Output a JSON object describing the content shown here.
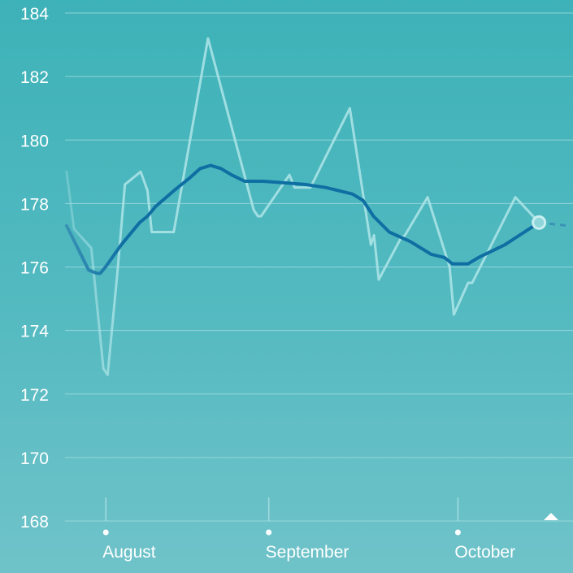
{
  "chart_data": {
    "type": "line",
    "title": "",
    "xlabel": "",
    "ylabel": "",
    "ylim": [
      168,
      184
    ],
    "ytick_labels": [
      "168",
      "170",
      "172",
      "174",
      "176",
      "178",
      "180",
      "182",
      "184"
    ],
    "x_month_labels": [
      "August",
      "September",
      "October"
    ],
    "grid": true,
    "series": [
      {
        "role": "raw",
        "values": [
          [
            -1.4,
            179.0
          ],
          [
            0.0,
            177.2
          ],
          [
            3.3,
            176.6
          ],
          [
            5.6,
            172.8
          ],
          [
            6.4,
            172.6
          ],
          [
            8.3,
            175.9
          ],
          [
            9.7,
            178.6
          ],
          [
            12.7,
            179.0
          ],
          [
            14.0,
            178.4
          ],
          [
            14.8,
            177.1
          ],
          [
            19.0,
            177.1
          ],
          [
            25.5,
            183.2
          ],
          [
            34.2,
            177.8
          ],
          [
            35.0,
            177.6
          ],
          [
            35.6,
            177.6
          ],
          [
            41.0,
            178.9
          ],
          [
            42.0,
            178.5
          ],
          [
            45.0,
            178.5
          ],
          [
            52.5,
            181.0
          ],
          [
            56.5,
            176.7
          ],
          [
            57.1,
            177.0
          ],
          [
            58.0,
            175.6
          ],
          [
            62.2,
            176.9
          ],
          [
            63.0,
            177.0
          ],
          [
            67.3,
            178.2
          ],
          [
            71.5,
            176.0
          ],
          [
            72.3,
            174.5
          ],
          [
            75.0,
            175.5
          ],
          [
            75.8,
            175.5
          ],
          [
            84.0,
            178.2
          ],
          [
            88.5,
            177.4
          ]
        ]
      },
      {
        "role": "trend",
        "values": [
          [
            -1.4,
            177.3
          ],
          [
            2.8,
            175.9
          ],
          [
            4.4,
            175.8
          ],
          [
            5.0,
            175.8
          ],
          [
            6.0,
            176.0
          ],
          [
            9.0,
            176.7
          ],
          [
            12.5,
            177.4
          ],
          [
            14.0,
            177.6
          ],
          [
            15.5,
            177.9
          ],
          [
            19.0,
            178.4
          ],
          [
            22.0,
            178.8
          ],
          [
            24.0,
            179.1
          ],
          [
            26.0,
            179.2
          ],
          [
            28.0,
            179.1
          ],
          [
            30.0,
            178.9
          ],
          [
            32.5,
            178.7
          ],
          [
            36.0,
            178.7
          ],
          [
            44.0,
            178.6
          ],
          [
            48.0,
            178.5
          ],
          [
            53.0,
            178.3
          ],
          [
            55.0,
            178.1
          ],
          [
            57.0,
            177.6
          ],
          [
            60.0,
            177.1
          ],
          [
            64.0,
            176.8
          ],
          [
            68.0,
            176.4
          ],
          [
            70.5,
            176.3
          ],
          [
            72.0,
            176.1
          ],
          [
            75.0,
            176.1
          ],
          [
            77.0,
            176.3
          ],
          [
            82.0,
            176.7
          ],
          [
            88.5,
            177.4
          ]
        ]
      },
      {
        "role": "projection",
        "values": [
          [
            88.5,
            177.4
          ],
          [
            94.0,
            177.3
          ]
        ]
      }
    ],
    "last_point": [
      88.5,
      177.4
    ],
    "colors": {
      "background_top": "#3db2b8",
      "background_bottom": "#6fc3c9",
      "grid": "#a8dfe2",
      "raw_line": "#a9e3e6",
      "trend_line": "#0f6fa3",
      "trend_fade": "#3a93b5",
      "text": "#ffffff"
    }
  }
}
